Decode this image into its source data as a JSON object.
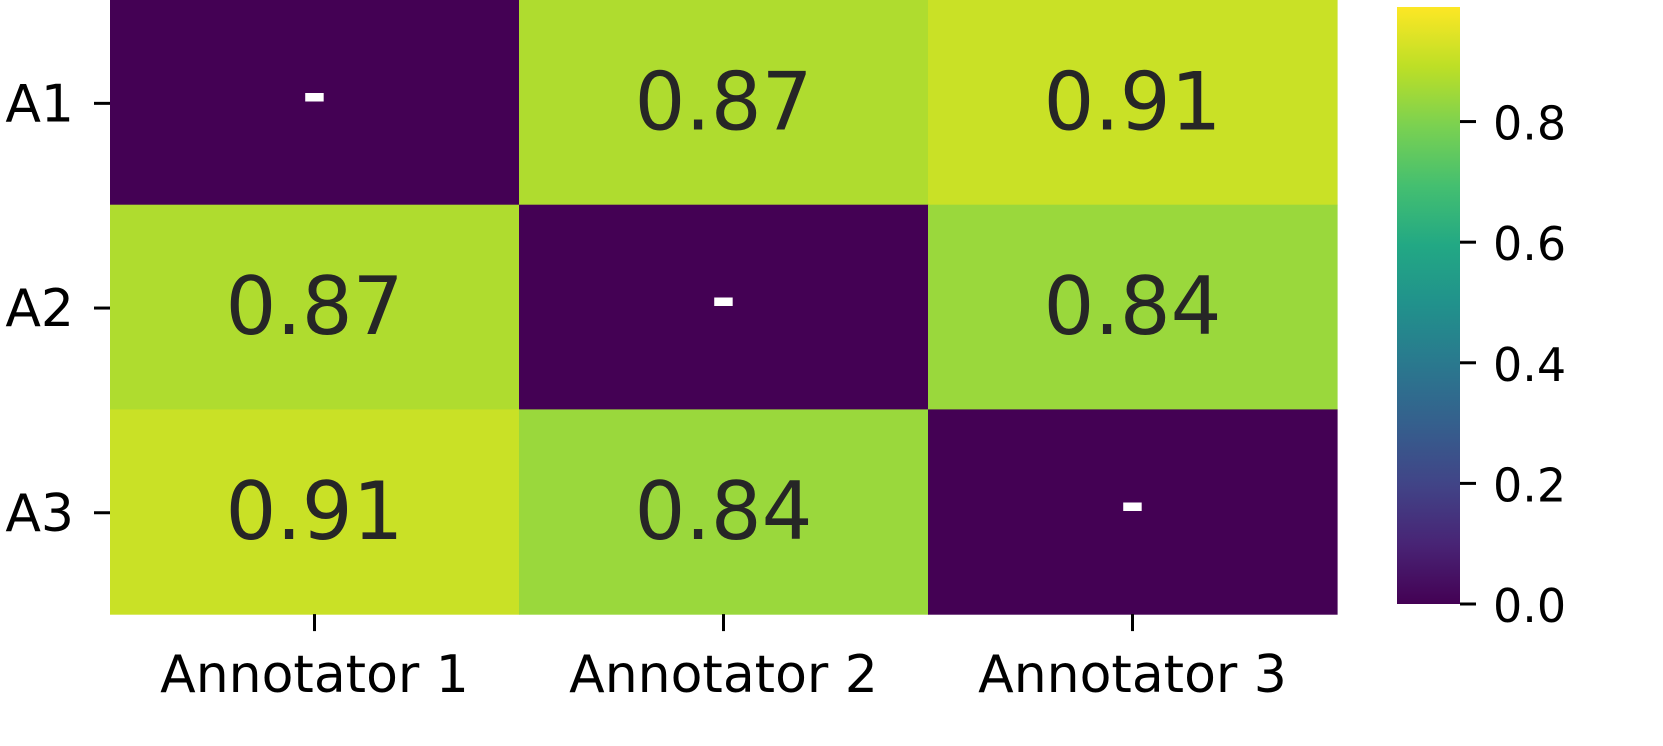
{
  "chart_data": {
    "type": "heatmap",
    "title": "",
    "xlabel": "",
    "ylabel": "",
    "x_categories": [
      "Annotator 1",
      "Annotator 2",
      "Annotator 3"
    ],
    "y_categories": [
      "A1",
      "A2",
      "A3"
    ],
    "values": [
      [
        0,
        0.87,
        0.91
      ],
      [
        0.87,
        0,
        0.84
      ],
      [
        0.91,
        0.84,
        0
      ]
    ],
    "cell_labels": [
      [
        "-",
        "0.87",
        "0.91"
      ],
      [
        "0.87",
        "-",
        "0.84"
      ],
      [
        "0.91",
        "0.84",
        "-"
      ]
    ],
    "colormap": "viridis",
    "colorbar": {
      "vmin": 0,
      "vmax": 0.99,
      "ticks": [
        0.0,
        0.2,
        0.4,
        0.6,
        0.8
      ],
      "tick_labels": [
        "0.0",
        "0.2",
        "0.4",
        "0.6",
        "0.8"
      ],
      "position": "right"
    },
    "colors": {
      "diagonal": "#440154",
      "text_dark": "#262626",
      "text_light": "#ffffff"
    },
    "grid": false,
    "legend": "colorbar-right"
  }
}
